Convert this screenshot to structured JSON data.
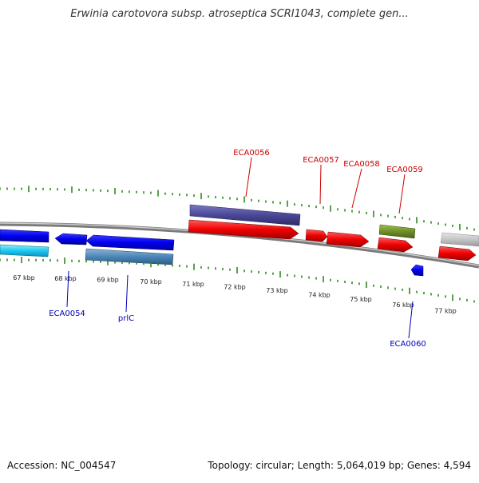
{
  "title": "Erwinia carotovora subsp. atroseptica SCRI1043, complete gen...",
  "footer": {
    "accession": "Accession: NC_004547",
    "summary": "Topology: circular; Length: 5,064,019 bp; Genes: 4,594"
  },
  "scale_labels": [
    "67 kbp",
    "68 kbp",
    "69 kbp",
    "70 kbp",
    "71 kbp",
    "72 kbp",
    "73 kbp",
    "74 kbp",
    "75 kbp",
    "76 kbp",
    "77 kbp"
  ],
  "forward_labels": [
    "ECA0056",
    "ECA0057",
    "ECA0058",
    "ECA0059"
  ],
  "reverse_labels": [
    "ECA0054",
    "prlC",
    "ECA0060"
  ],
  "colors": {
    "forward_label": "#cc0000",
    "reverse_label": "#0000bb",
    "tick": "#2e8b1e",
    "backbone": "#8c8c8c"
  }
}
